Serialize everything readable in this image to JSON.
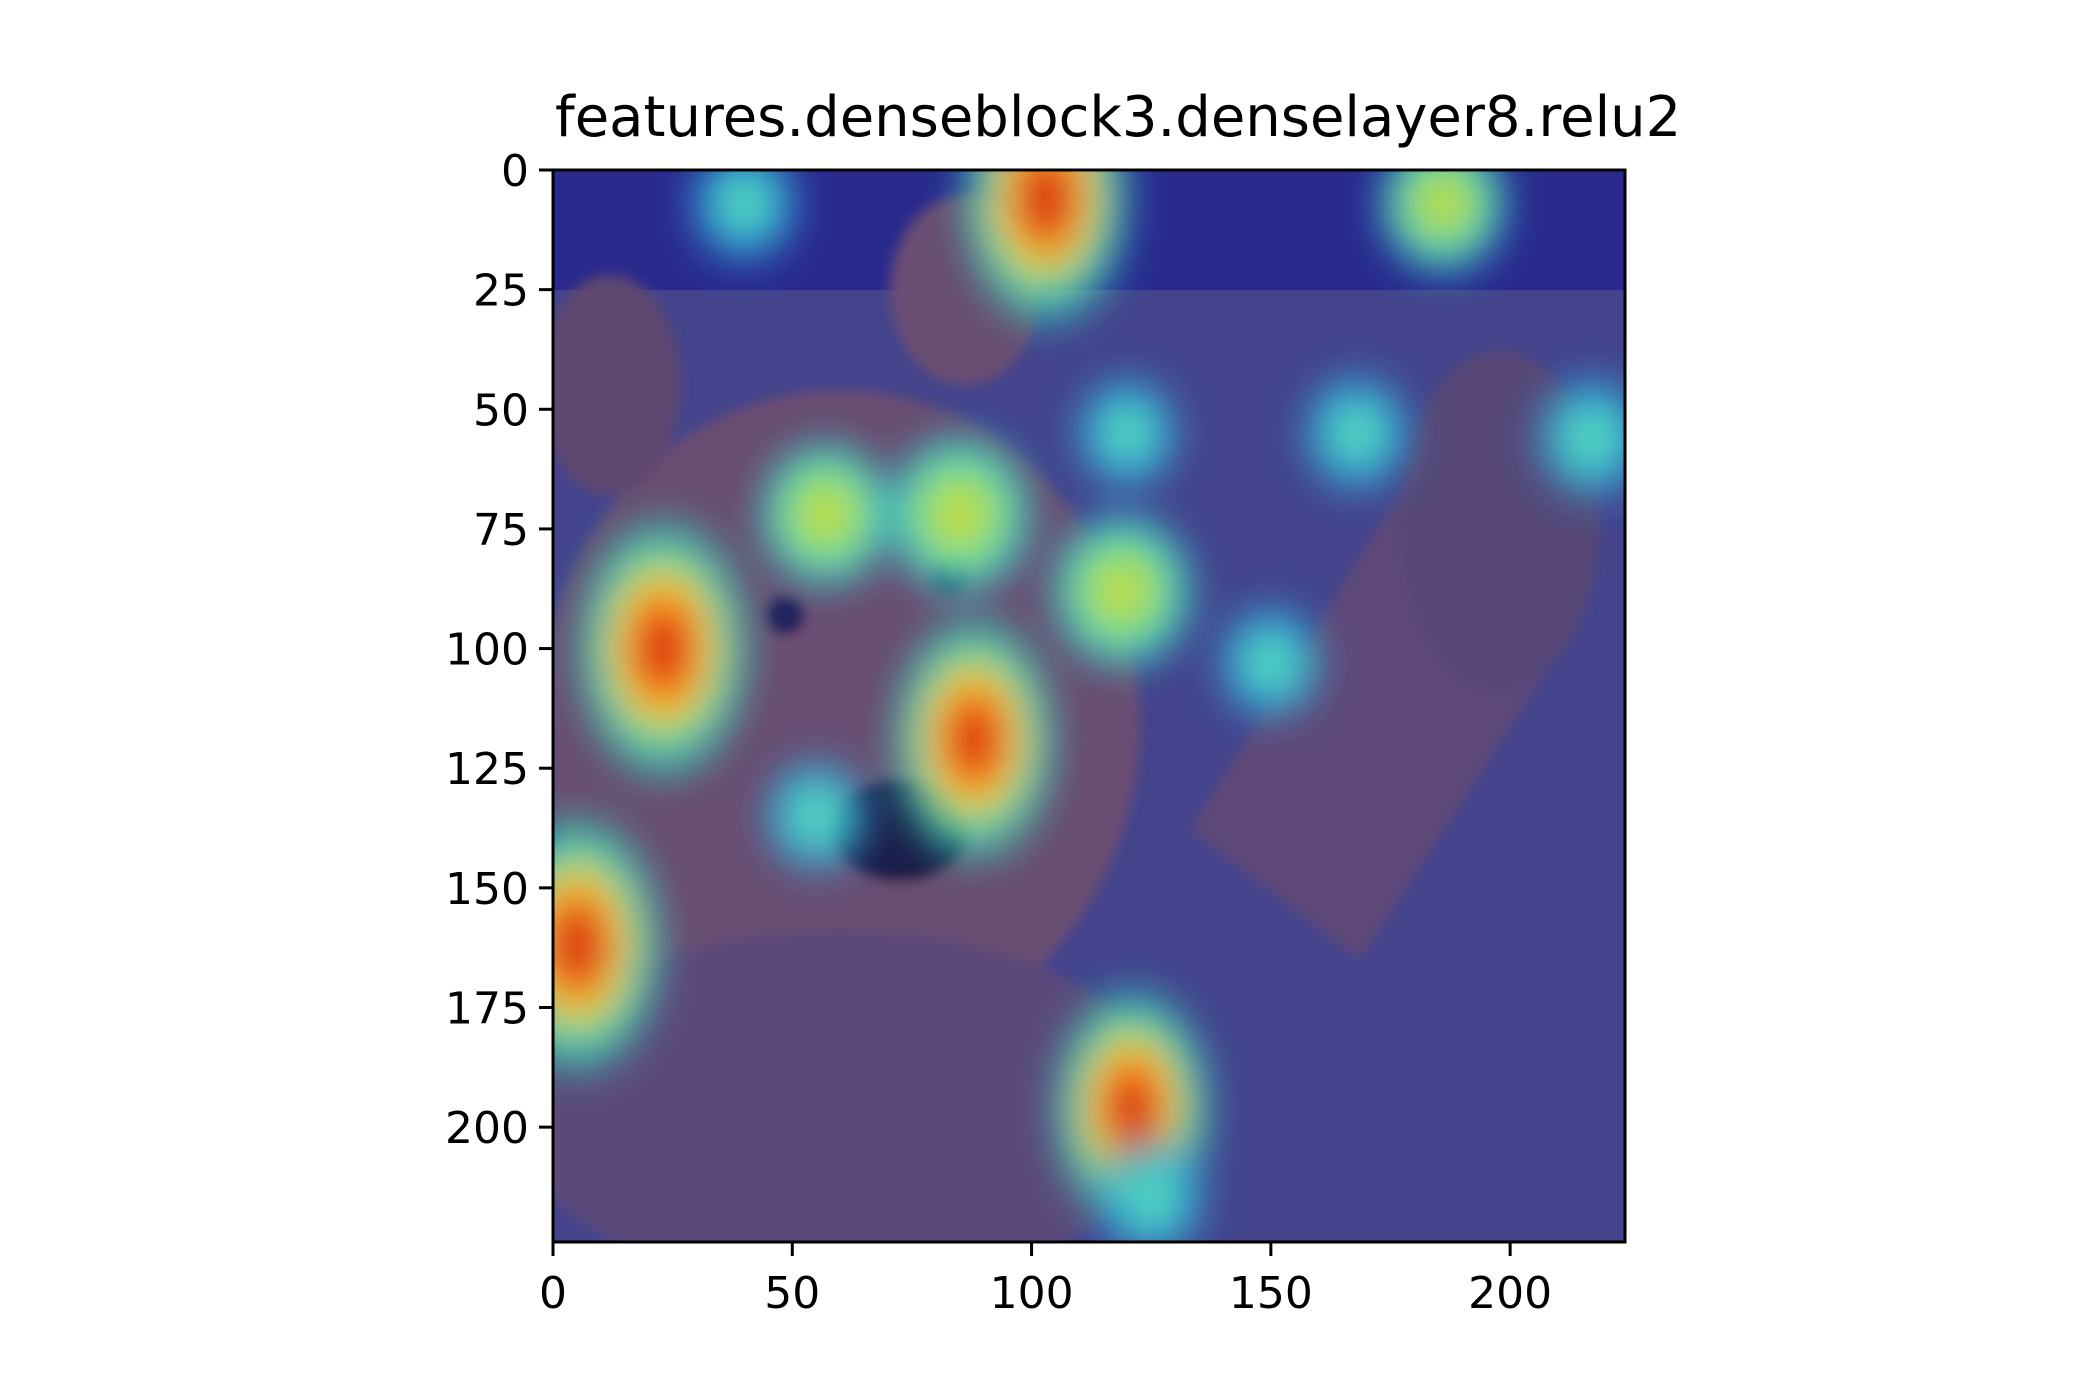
{
  "chart_data": {
    "type": "heatmap",
    "title": "features.denseblock3.denselayer8.relu2",
    "subject": "brown bear cub raising its right paw, overlaid with a jet-colormap activation heatmap",
    "colormap": "jet",
    "image_size": [
      224,
      224
    ],
    "xlim": [
      0,
      224
    ],
    "ylim": [
      224,
      0
    ],
    "x_ticks": [
      0,
      50,
      100,
      150,
      200
    ],
    "y_ticks": [
      0,
      25,
      50,
      75,
      100,
      125,
      150,
      175,
      200
    ],
    "grid": false,
    "legend": "none",
    "hotspots": [
      {
        "x": 103,
        "y": 6,
        "intensity": 0.95
      },
      {
        "x": 23,
        "y": 100,
        "intensity": 1.0
      },
      {
        "x": 5,
        "y": 162,
        "intensity": 0.98
      },
      {
        "x": 88,
        "y": 119,
        "intensity": 0.9
      },
      {
        "x": 121,
        "y": 196,
        "intensity": 0.85
      },
      {
        "x": 85,
        "y": 72,
        "intensity": 0.72
      },
      {
        "x": 57,
        "y": 72,
        "intensity": 0.6
      },
      {
        "x": 119,
        "y": 88,
        "intensity": 0.68
      },
      {
        "x": 186,
        "y": 7,
        "intensity": 0.55
      },
      {
        "x": 217,
        "y": 56,
        "intensity": 0.5
      },
      {
        "x": 168,
        "y": 55,
        "intensity": 0.45
      },
      {
        "x": 150,
        "y": 103,
        "intensity": 0.42
      },
      {
        "x": 120,
        "y": 55,
        "intensity": 0.4
      },
      {
        "x": 55,
        "y": 135,
        "intensity": 0.42
      },
      {
        "x": 40,
        "y": 7,
        "intensity": 0.45
      },
      {
        "x": 125,
        "y": 215,
        "intensity": 0.45
      }
    ],
    "colors": {
      "low": "#1a1a9e",
      "mid": "#22e0c0",
      "high": "#ffe020",
      "peak": "#d01010",
      "bear_fur": "#6b4a4a",
      "background": "#3a3a78"
    }
  }
}
